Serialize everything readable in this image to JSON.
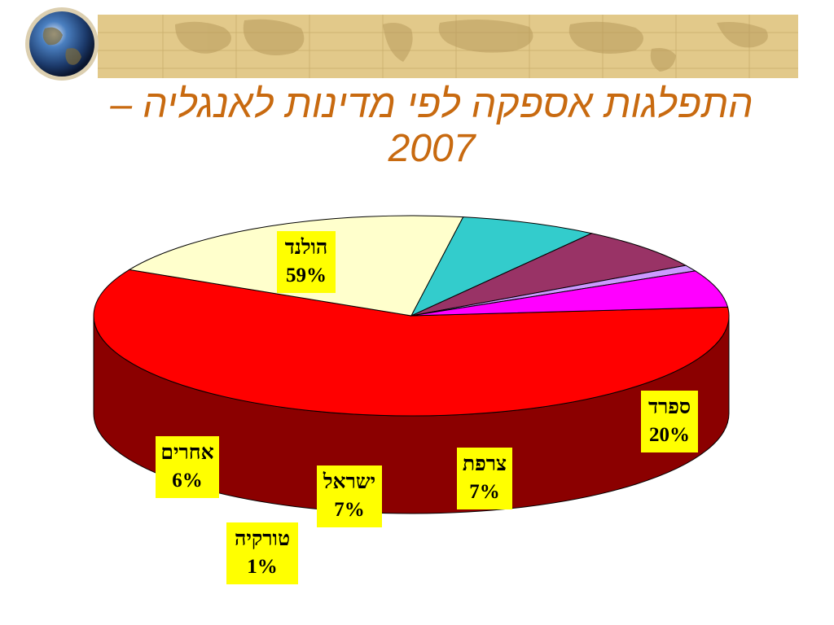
{
  "title": {
    "line1": "התפלגות אספקה לפי מדינות לאנגליה –",
    "line2": "2007"
  },
  "decoration": {
    "globe_icon": "globe-icon",
    "banner": "world-map-banner",
    "banner_color": "#e2c98a"
  },
  "chart_data": {
    "type": "pie",
    "style": "3d",
    "title": "התפלגות אספקה לפי מדינות לאנגליה – 2007",
    "slices": [
      {
        "label": "הולנד",
        "value": 59,
        "value_label": "59%",
        "color": "#ff0000",
        "side": "#8b0000"
      },
      {
        "label": "ספרד",
        "value": 20,
        "value_label": "20%",
        "color": "#ffffcc",
        "side": "#808066"
      },
      {
        "label": "צרפת",
        "value": 7,
        "value_label": "7%",
        "color": "#33cccc",
        "side": "#1a6666"
      },
      {
        "label": "ישראל",
        "value": 7,
        "value_label": "7%",
        "color": "#993366",
        "side": "#4d1a33"
      },
      {
        "label": "טורקיה",
        "value": 1,
        "value_label": "1%",
        "color": "#cc99ff",
        "side": "#664c80"
      },
      {
        "label": "אחרים",
        "value": 6,
        "value_label": "6%",
        "color": "#ff00ff",
        "side": "#800080"
      }
    ],
    "label_style": {
      "background": "#ffff00",
      "text": "#000000"
    }
  }
}
